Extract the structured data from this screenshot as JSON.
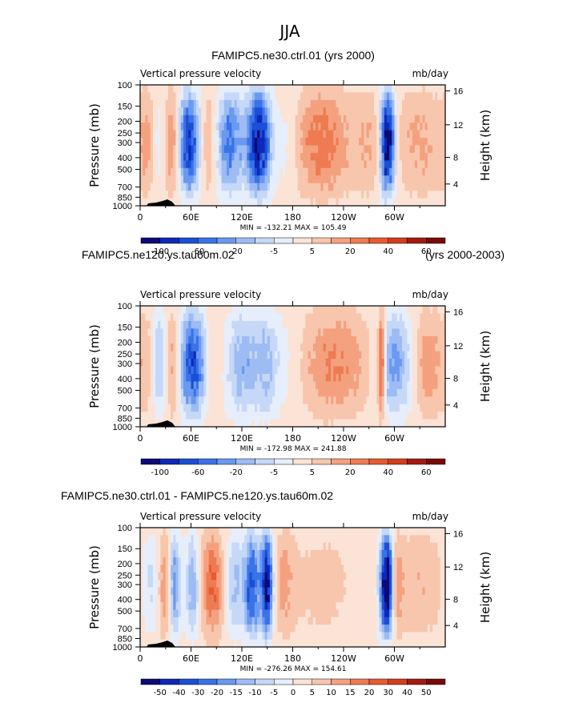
{
  "title": "JJA",
  "colors": {
    "blue": [
      "#0a0a78",
      "#0d29b8",
      "#1a4fd6",
      "#3a72e8",
      "#6a99f0",
      "#9dbcf4",
      "#c6d8f8",
      "#e6eefb"
    ],
    "red": [
      "#fbe3d6",
      "#f8c6ad",
      "#f4a17f",
      "#ee7b52",
      "#e85a30",
      "#d23e1e",
      "#a41b10",
      "#7a0a06"
    ],
    "terrain": "#000000"
  },
  "chart_data": [
    {
      "type": "heatmap",
      "name": "panel-ctrl",
      "title_left": "FAMIPC5.ne30.ctrl.01 (yrs 2000)",
      "title_right": "",
      "field_left": "Vertical pressure velocity",
      "units": "mb/day",
      "ylabel": "Pressure (mb)",
      "ylabel_right": "Height (km)",
      "y_ticks": [
        "100",
        "150",
        "200",
        "250",
        "300",
        "400",
        "500",
        "700",
        "850",
        "1000"
      ],
      "y_ticks_right": [
        "16",
        "12",
        "8",
        "4"
      ],
      "x_ticks": [
        "0",
        "60E",
        "120E",
        "180",
        "120W",
        "60W"
      ],
      "x_ticks_numeric": [
        0,
        60,
        120,
        180,
        240,
        300
      ],
      "xlim": [
        0,
        360
      ],
      "ylim": [
        1000,
        100
      ],
      "minmax": "MIN = -132.21   MAX = 105.49",
      "colorbar_labels": [
        "-100",
        "-60",
        "-20",
        "-5",
        "5",
        "20",
        "40",
        "60"
      ],
      "n_colors": 16,
      "features": [
        {
          "lon": 10,
          "val": 25,
          "width": 8
        },
        {
          "lon": 20,
          "val": -20,
          "width": 8
        },
        {
          "lon": 38,
          "val": 35,
          "width": 7
        },
        {
          "lon": 58,
          "val": -75,
          "width": 10
        },
        {
          "lon": 80,
          "val": 25,
          "width": 9
        },
        {
          "lon": 105,
          "val": -55,
          "width": 12
        },
        {
          "lon": 140,
          "val": -90,
          "width": 10
        },
        {
          "lon": 175,
          "val": -15,
          "width": 10
        },
        {
          "lon": 215,
          "val": 35,
          "width": 25
        },
        {
          "lon": 270,
          "val": 15,
          "width": 10
        },
        {
          "lon": 292,
          "val": -100,
          "width": 6
        },
        {
          "lon": 330,
          "val": 20,
          "width": 20
        }
      ]
    },
    {
      "type": "heatmap",
      "name": "panel-tau60m",
      "title_left": "FAMIPC5.ne120.ys.tau60m.02",
      "title_right": "(yrs 2000-2003)",
      "field_left": "Vertical pressure velocity",
      "units": "mb/day",
      "ylabel": "Pressure (mb)",
      "ylabel_right": "Height (km)",
      "y_ticks": [
        "100",
        "150",
        "200",
        "250",
        "300",
        "400",
        "500",
        "700",
        "850",
        "1000"
      ],
      "y_ticks_right": [
        "16",
        "12",
        "8",
        "4"
      ],
      "x_ticks": [
        "0",
        "60E",
        "120E",
        "180",
        "120W",
        "60W"
      ],
      "x_ticks_numeric": [
        0,
        60,
        120,
        180,
        240,
        300
      ],
      "xlim": [
        0,
        360
      ],
      "ylim": [
        1000,
        100
      ],
      "minmax": "MIN = -172.98   MAX = 241.88",
      "colorbar_labels": [
        "-100",
        "-60",
        "-20",
        "-5",
        "5",
        "20",
        "40",
        "60"
      ],
      "n_colors": 16,
      "features": [
        {
          "lon": 10,
          "val": 20,
          "width": 8
        },
        {
          "lon": 22,
          "val": -35,
          "width": 8
        },
        {
          "lon": 38,
          "val": 30,
          "width": 7
        },
        {
          "lon": 62,
          "val": -70,
          "width": 12
        },
        {
          "lon": 85,
          "val": 15,
          "width": 8
        },
        {
          "lon": 120,
          "val": -35,
          "width": 14
        },
        {
          "lon": 150,
          "val": -30,
          "width": 12
        },
        {
          "lon": 180,
          "val": -8,
          "width": 10
        },
        {
          "lon": 230,
          "val": 30,
          "width": 28
        },
        {
          "lon": 285,
          "val": 60,
          "width": 3
        },
        {
          "lon": 300,
          "val": -45,
          "width": 14
        },
        {
          "lon": 340,
          "val": 25,
          "width": 12
        }
      ]
    },
    {
      "type": "heatmap",
      "name": "panel-diff",
      "title_left": "FAMIPC5.ne30.ctrl.01 - FAMIPC5.ne120.ys.tau60m.02",
      "title_right": "",
      "field_left": "Vertical pressure velocity",
      "units": "mb/day",
      "ylabel": "Pressure (mb)",
      "ylabel_right": "Height (km)",
      "y_ticks": [
        "100",
        "150",
        "200",
        "250",
        "300",
        "400",
        "500",
        "700",
        "850",
        "1000"
      ],
      "y_ticks_right": [
        "16",
        "12",
        "8",
        "4"
      ],
      "x_ticks": [
        "0",
        "60E",
        "120E",
        "180",
        "120W",
        "60W"
      ],
      "x_ticks_numeric": [
        0,
        60,
        120,
        180,
        240,
        300
      ],
      "xlim": [
        0,
        360
      ],
      "ylim": [
        1000,
        100
      ],
      "minmax": "MIN = -276.26   MAX = 154.61",
      "colorbar_labels": [
        "-50",
        "-40",
        "-30",
        "-20",
        "-15",
        "-10",
        "-5",
        "0",
        "5",
        "10",
        "15",
        "20",
        "30",
        "40",
        "50"
      ],
      "n_colors": 16,
      "features": [
        {
          "lon": 12,
          "val": -10,
          "width": 8
        },
        {
          "lon": 30,
          "val": 15,
          "width": 6
        },
        {
          "lon": 40,
          "val": -25,
          "width": 5
        },
        {
          "lon": 62,
          "val": -20,
          "width": 6
        },
        {
          "lon": 85,
          "val": 20,
          "width": 10
        },
        {
          "lon": 110,
          "val": -15,
          "width": 8
        },
        {
          "lon": 132,
          "val": -35,
          "width": 7
        },
        {
          "lon": 150,
          "val": -45,
          "width": 5
        },
        {
          "lon": 170,
          "val": 10,
          "width": 10
        },
        {
          "lon": 215,
          "val": 5,
          "width": 25
        },
        {
          "lon": 292,
          "val": -60,
          "width": 6
        },
        {
          "lon": 300,
          "val": 20,
          "width": 6
        },
        {
          "lon": 330,
          "val": 8,
          "width": 20
        }
      ]
    }
  ]
}
